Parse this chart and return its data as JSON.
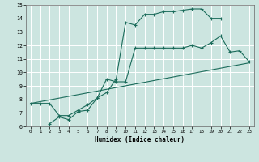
{
  "title": "",
  "xlabel": "Humidex (Indice chaleur)",
  "ylabel": "",
  "xlim": [
    -0.5,
    23.5
  ],
  "ylim": [
    6,
    15
  ],
  "xticks": [
    0,
    1,
    2,
    3,
    4,
    5,
    6,
    7,
    8,
    9,
    10,
    11,
    12,
    13,
    14,
    15,
    16,
    17,
    18,
    19,
    20,
    21,
    22,
    23
  ],
  "yticks": [
    6,
    7,
    8,
    9,
    10,
    11,
    12,
    13,
    14,
    15
  ],
  "bg_color": "#cce5e0",
  "grid_color": "#ffffff",
  "line_color": "#1a6b5a",
  "line1_x": [
    0,
    1,
    2,
    3,
    4,
    5,
    6,
    7,
    8,
    9,
    10,
    11,
    12,
    13,
    14,
    15,
    16,
    17,
    18,
    19,
    20
  ],
  "line1_y": [
    7.7,
    7.7,
    7.7,
    6.8,
    6.8,
    7.2,
    7.6,
    8.1,
    8.5,
    9.5,
    13.7,
    13.5,
    14.3,
    14.3,
    14.5,
    14.5,
    14.6,
    14.7,
    14.7,
    14.0,
    14.0
  ],
  "line2_x": [
    2,
    3,
    4,
    5,
    6,
    7,
    8,
    9,
    10,
    11,
    12,
    13,
    14,
    15,
    16,
    17,
    18,
    19,
    20,
    21,
    22,
    23
  ],
  "line2_y": [
    6.2,
    6.7,
    6.5,
    7.1,
    7.2,
    8.1,
    9.5,
    9.3,
    9.3,
    11.8,
    11.8,
    11.8,
    11.8,
    11.8,
    11.8,
    12.0,
    11.8,
    12.2,
    12.7,
    11.5,
    11.6,
    10.8
  ],
  "line3_x": [
    0,
    23
  ],
  "line3_y": [
    7.7,
    10.7
  ]
}
